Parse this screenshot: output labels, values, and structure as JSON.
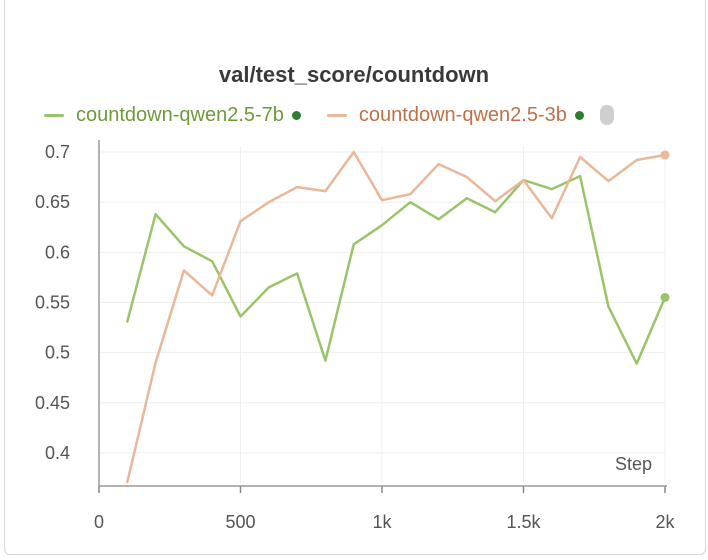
{
  "chart_data": {
    "type": "line",
    "title": "val/test_score/countdown",
    "xlabel": "Step",
    "ylabel": "",
    "xlim": [
      0,
      2000
    ],
    "ylim": [
      0.37,
      0.705
    ],
    "x_ticks": [
      0,
      500,
      1000,
      1500,
      2000
    ],
    "x_tick_labels": [
      "0",
      "500",
      "1k",
      "1.5k",
      "2k"
    ],
    "y_ticks": [
      0.4,
      0.45,
      0.5,
      0.55,
      0.6,
      0.65,
      0.7
    ],
    "y_tick_labels": [
      "0.4",
      "0.45",
      "0.5",
      "0.55",
      "0.6",
      "0.65",
      "0.7"
    ],
    "grid": true,
    "legend_position": "top",
    "series": [
      {
        "name": "countdown-qwen2.5-7b",
        "color": "#9bc46a",
        "x": [
          100,
          200,
          300,
          400,
          500,
          600,
          700,
          800,
          900,
          1000,
          1100,
          1200,
          1300,
          1400,
          1500,
          1600,
          1700,
          1800,
          1900,
          2000
        ],
        "y": [
          0.531,
          0.638,
          0.606,
          0.591,
          0.536,
          0.565,
          0.579,
          0.492,
          0.608,
          0.627,
          0.65,
          0.633,
          0.654,
          0.64,
          0.672,
          0.663,
          0.676,
          0.546,
          0.489,
          0.555
        ]
      },
      {
        "name": "countdown-qwen2.5-3b",
        "color": "#e8b898",
        "label_color": "#c0704a",
        "x": [
          100,
          200,
          300,
          400,
          500,
          600,
          700,
          800,
          900,
          1000,
          1100,
          1200,
          1300,
          1400,
          1500,
          1600,
          1700,
          1800,
          1900,
          2000
        ],
        "y": [
          0.371,
          0.49,
          0.582,
          0.557,
          0.631,
          0.65,
          0.665,
          0.661,
          0.7,
          0.652,
          0.658,
          0.688,
          0.675,
          0.651,
          0.672,
          0.634,
          0.695,
          0.671,
          0.692,
          0.697
        ]
      }
    ]
  }
}
